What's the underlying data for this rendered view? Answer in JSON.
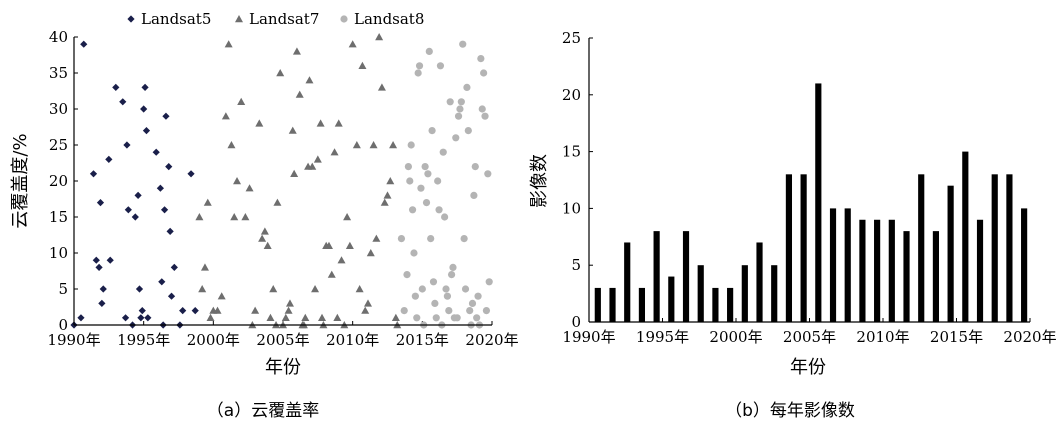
{
  "chart_data": [
    {
      "type": "scatter",
      "ylabel": "云覆盖度/%",
      "xlabel": "年份",
      "caption": "（a）云覆盖率",
      "ylim": [
        0,
        40
      ],
      "yticks": [
        0,
        5,
        10,
        15,
        20,
        25,
        30,
        35,
        40
      ],
      "xlim": [
        1990,
        2020
      ],
      "xticks": [
        1990,
        1995,
        2000,
        2005,
        2010,
        2015,
        2020
      ],
      "xtick_labels": [
        "1990年",
        "1995年",
        "2000年",
        "2005年",
        "2010年",
        "2015年",
        "2020年"
      ],
      "legend_position": "top",
      "series": [
        {
          "name": "Landsat5",
          "marker": "diamond",
          "color": "#1a1f4a",
          "points": [
            [
              1990.0,
              0
            ],
            [
              1990.5,
              1
            ],
            [
              1990.7,
              39
            ],
            [
              1991.4,
              21
            ],
            [
              1991.6,
              9
            ],
            [
              1991.8,
              8
            ],
            [
              1991.9,
              17
            ],
            [
              1992.0,
              3
            ],
            [
              1992.1,
              5
            ],
            [
              1992.5,
              23
            ],
            [
              1992.6,
              9
            ],
            [
              1993.0,
              33
            ],
            [
              1993.5,
              31
            ],
            [
              1993.7,
              1
            ],
            [
              1993.8,
              25
            ],
            [
              1993.9,
              16
            ],
            [
              1994.2,
              0
            ],
            [
              1994.4,
              15
            ],
            [
              1994.6,
              18
            ],
            [
              1994.7,
              5
            ],
            [
              1994.8,
              1
            ],
            [
              1994.9,
              2
            ],
            [
              1995.0,
              30
            ],
            [
              1995.1,
              33
            ],
            [
              1995.2,
              27
            ],
            [
              1995.3,
              1
            ],
            [
              1995.9,
              24
            ],
            [
              1996.2,
              19
            ],
            [
              1996.3,
              6
            ],
            [
              1996.4,
              0
            ],
            [
              1996.5,
              16
            ],
            [
              1996.6,
              29
            ],
            [
              1996.8,
              22
            ],
            [
              1996.9,
              13
            ],
            [
              1997.0,
              4
            ],
            [
              1997.2,
              8
            ],
            [
              1997.6,
              0
            ],
            [
              1997.8,
              2
            ],
            [
              1998.4,
              21
            ],
            [
              1998.7,
              2
            ]
          ]
        },
        {
          "name": "Landsat7",
          "marker": "triangle",
          "color": "#6e6e6e",
          "points": [
            [
              1999.0,
              15
            ],
            [
              1999.2,
              5
            ],
            [
              1999.4,
              8
            ],
            [
              1999.6,
              17
            ],
            [
              1999.8,
              1
            ],
            [
              2000.0,
              2
            ],
            [
              2000.3,
              2
            ],
            [
              2000.6,
              4
            ],
            [
              2000.9,
              29
            ],
            [
              2001.1,
              39
            ],
            [
              2001.3,
              25
            ],
            [
              2001.5,
              15
            ],
            [
              2001.7,
              20
            ],
            [
              2002.0,
              31
            ],
            [
              2002.3,
              15
            ],
            [
              2002.6,
              19
            ],
            [
              2002.8,
              0
            ],
            [
              2003.0,
              2
            ],
            [
              2003.3,
              28
            ],
            [
              2003.5,
              12
            ],
            [
              2003.7,
              13
            ],
            [
              2003.9,
              11
            ],
            [
              2004.1,
              1
            ],
            [
              2004.3,
              5
            ],
            [
              2004.5,
              0
            ],
            [
              2004.6,
              17
            ],
            [
              2004.8,
              35
            ],
            [
              2005.0,
              0
            ],
            [
              2005.2,
              1
            ],
            [
              2005.4,
              2
            ],
            [
              2005.5,
              3
            ],
            [
              2005.7,
              27
            ],
            [
              2005.8,
              21
            ],
            [
              2006.0,
              38
            ],
            [
              2006.2,
              32
            ],
            [
              2006.4,
              0
            ],
            [
              2006.5,
              0
            ],
            [
              2006.6,
              1
            ],
            [
              2006.8,
              22
            ],
            [
              2006.9,
              34
            ],
            [
              2007.1,
              22
            ],
            [
              2007.3,
              5
            ],
            [
              2007.5,
              23
            ],
            [
              2007.7,
              28
            ],
            [
              2007.8,
              1
            ],
            [
              2007.9,
              0
            ],
            [
              2008.1,
              11
            ],
            [
              2008.3,
              11
            ],
            [
              2008.5,
              7
            ],
            [
              2008.7,
              24
            ],
            [
              2008.9,
              1
            ],
            [
              2009.0,
              28
            ],
            [
              2009.2,
              9
            ],
            [
              2009.4,
              0
            ],
            [
              2009.6,
              15
            ],
            [
              2009.8,
              11
            ],
            [
              2010.0,
              39
            ],
            [
              2010.3,
              25
            ],
            [
              2010.5,
              5
            ],
            [
              2010.7,
              36
            ],
            [
              2010.9,
              2
            ],
            [
              2011.1,
              3
            ],
            [
              2011.3,
              10
            ],
            [
              2011.5,
              25
            ],
            [
              2011.7,
              12
            ],
            [
              2011.9,
              40
            ],
            [
              2012.1,
              33
            ],
            [
              2012.3,
              17
            ],
            [
              2012.5,
              18
            ],
            [
              2012.7,
              20
            ],
            [
              2012.9,
              25
            ],
            [
              2013.1,
              1
            ],
            [
              2013.2,
              0
            ]
          ]
        },
        {
          "name": "Landsat8",
          "marker": "circle",
          "color": "#b4b4b4",
          "points": [
            [
              2013.5,
              12
            ],
            [
              2013.7,
              2
            ],
            [
              2013.9,
              7
            ],
            [
              2014.0,
              22
            ],
            [
              2014.1,
              20
            ],
            [
              2014.2,
              25
            ],
            [
              2014.3,
              16
            ],
            [
              2014.4,
              10
            ],
            [
              2014.5,
              4
            ],
            [
              2014.6,
              1
            ],
            [
              2014.7,
              35
            ],
            [
              2014.8,
              36
            ],
            [
              2014.9,
              19
            ],
            [
              2015.0,
              5
            ],
            [
              2015.1,
              0
            ],
            [
              2015.2,
              22
            ],
            [
              2015.3,
              17
            ],
            [
              2015.4,
              21
            ],
            [
              2015.5,
              38
            ],
            [
              2015.6,
              12
            ],
            [
              2015.7,
              27
            ],
            [
              2015.8,
              6
            ],
            [
              2015.9,
              3
            ],
            [
              2016.0,
              1
            ],
            [
              2016.1,
              20
            ],
            [
              2016.2,
              16
            ],
            [
              2016.3,
              36
            ],
            [
              2016.4,
              0
            ],
            [
              2016.5,
              24
            ],
            [
              2016.6,
              15
            ],
            [
              2016.7,
              5
            ],
            [
              2016.8,
              4
            ],
            [
              2016.9,
              2
            ],
            [
              2017.0,
              31
            ],
            [
              2017.1,
              7
            ],
            [
              2017.2,
              8
            ],
            [
              2017.3,
              1
            ],
            [
              2017.4,
              26
            ],
            [
              2017.5,
              1
            ],
            [
              2017.6,
              29
            ],
            [
              2017.7,
              30
            ],
            [
              2017.8,
              31
            ],
            [
              2017.9,
              39
            ],
            [
              2018.0,
              12
            ],
            [
              2018.1,
              5
            ],
            [
              2018.2,
              33
            ],
            [
              2018.3,
              27
            ],
            [
              2018.4,
              2
            ],
            [
              2018.5,
              0
            ],
            [
              2018.6,
              3
            ],
            [
              2018.7,
              18
            ],
            [
              2018.8,
              22
            ],
            [
              2018.9,
              1
            ],
            [
              2019.0,
              4
            ],
            [
              2019.1,
              0
            ],
            [
              2019.2,
              37
            ],
            [
              2019.3,
              30
            ],
            [
              2019.4,
              35
            ],
            [
              2019.5,
              29
            ],
            [
              2019.6,
              2
            ],
            [
              2019.7,
              21
            ],
            [
              2019.8,
              6
            ]
          ]
        }
      ]
    },
    {
      "type": "bar",
      "ylabel": "影像数",
      "xlabel": "年份",
      "caption": "（b）每年影像数",
      "ylim": [
        0,
        25
      ],
      "yticks": [
        0,
        5,
        10,
        15,
        20,
        25
      ],
      "xlim": [
        1990,
        2020
      ],
      "xticks": [
        1990,
        1995,
        2000,
        2005,
        2010,
        2015,
        2020
      ],
      "xtick_labels": [
        "1990年",
        "1995年",
        "2000年",
        "2005年",
        "2010年",
        "2015年",
        "2020年"
      ],
      "bar_color": "#000000",
      "x": [
        1990,
        1991,
        1992,
        1993,
        1994,
        1995,
        1996,
        1997,
        1998,
        1999,
        2000,
        2001,
        2002,
        2003,
        2004,
        2005,
        2006,
        2007,
        2008,
        2009,
        2010,
        2011,
        2012,
        2013,
        2014,
        2015,
        2016,
        2017,
        2018,
        2019
      ],
      "values": [
        3,
        3,
        7,
        3,
        8,
        4,
        8,
        5,
        3,
        3,
        5,
        7,
        5,
        13,
        13,
        21,
        10,
        10,
        9,
        9,
        9,
        8,
        13,
        8,
        12,
        15,
        9,
        13,
        13,
        10
      ]
    }
  ]
}
